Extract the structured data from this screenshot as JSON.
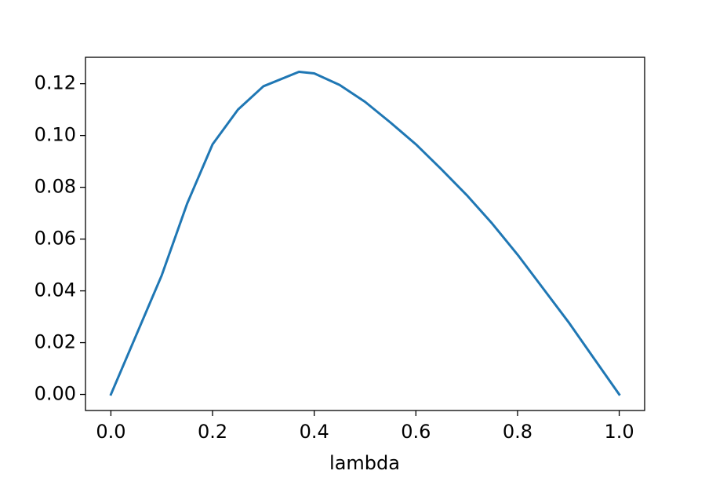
{
  "chart_data": {
    "type": "line",
    "x_label": "lambda",
    "x": [
      0,
      0.05,
      0.1,
      0.15,
      0.2,
      0.25,
      0.3,
      0.37,
      0.4,
      0.45,
      0.5,
      0.55,
      0.6,
      0.65,
      0.7,
      0.75,
      0.8,
      0.85,
      0.9,
      0.95,
      1.0
    ],
    "series": [
      {
        "color": "#1f77b4",
        "values": [
          0,
          0.023,
          0.046,
          0.0737,
          0.0966,
          0.11,
          0.119,
          0.1246,
          0.124,
          0.1195,
          0.113,
          0.105,
          0.0966,
          0.087,
          0.077,
          0.066,
          0.054,
          0.041,
          0.028,
          0.014,
          0
        ]
      }
    ],
    "xlim": [
      -0.05,
      1.05
    ],
    "ylim": [
      -0.0062,
      0.1302
    ],
    "xticks": [
      {
        "value": 0,
        "label": "0.0"
      },
      {
        "value": 0.2,
        "label": "0.2"
      },
      {
        "value": 0.4,
        "label": "0.4"
      },
      {
        "value": 0.6,
        "label": "0.6"
      },
      {
        "value": 0.8,
        "label": "0.8"
      },
      {
        "value": 1.0,
        "label": "1.0"
      }
    ],
    "yticks": [
      {
        "value": 0,
        "label": "0.00"
      },
      {
        "value": 0.02,
        "label": "0.02"
      },
      {
        "value": 0.04,
        "label": "0.04"
      },
      {
        "value": 0.06,
        "label": "0.06"
      },
      {
        "value": 0.08,
        "label": "0.08"
      },
      {
        "value": 0.1,
        "label": "0.10"
      },
      {
        "value": 0.12,
        "label": "0.12"
      }
    ],
    "grid": false
  }
}
